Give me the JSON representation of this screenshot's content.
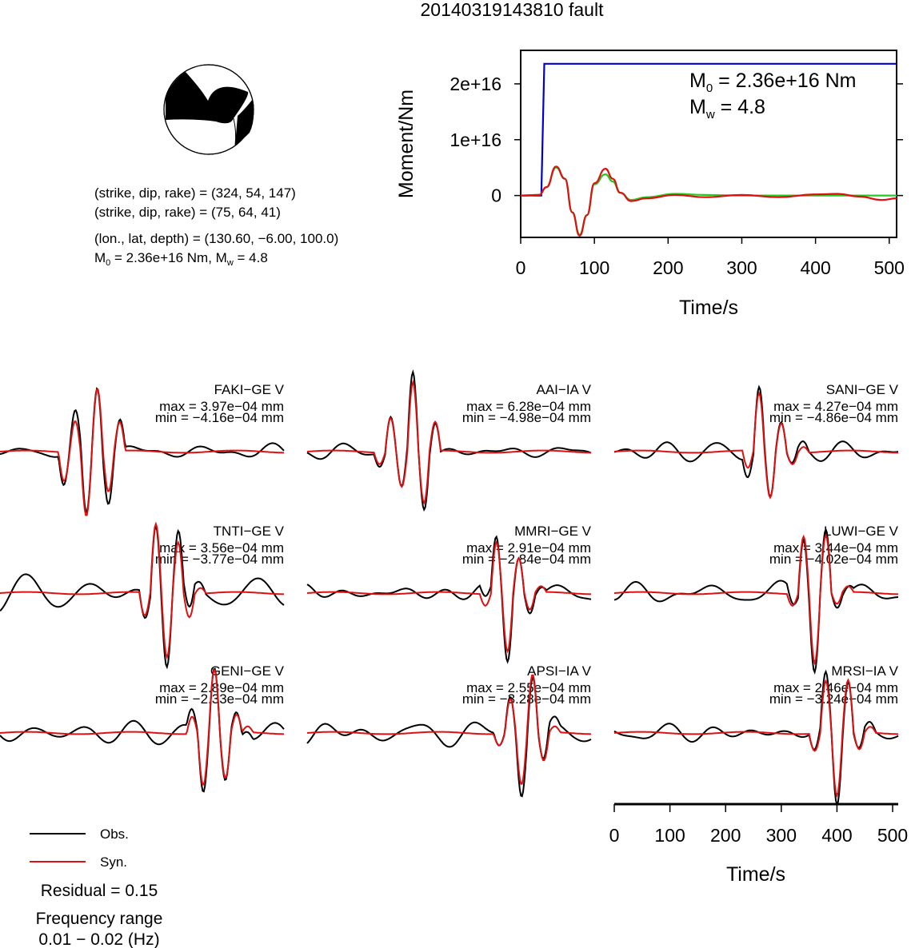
{
  "title": "20140319143810 fault",
  "mechanism": {
    "line1": "(strike, dip, rake) = (324, 54, 147)",
    "line2": "(strike, dip, rake) = (75, 64, 41)",
    "location": "(lon., lat, depth) = (130.60, −6.00, 100.0)",
    "moment_prefix": "M",
    "moment_sub": "0",
    "moment_text": " = 2.36e+16 Nm, M",
    "mw_sub": "w",
    "mw_text": " = 4.8"
  },
  "stf": {
    "ylabel": "Moment/Nm",
    "xlabel": "Time/s",
    "xticks": [
      0,
      100,
      200,
      300,
      400,
      500
    ],
    "yticks": [
      {
        "v": 0,
        "label": "0"
      },
      {
        "v": 1e+16,
        "label": "1e+16"
      },
      {
        "v": 2e+16,
        "label": "2e+16"
      }
    ],
    "xlim": [
      0,
      510
    ],
    "ylim": [
      -7500000000000000.0,
      2.6e+16
    ],
    "m0_prefix": "M",
    "m0_sub": "0",
    "m0_text": " = 2.36e+16 Nm",
    "mw_prefix": "M",
    "mw_sub": "w",
    "mw_text": " = 4.8",
    "colors": {
      "cumulative": "#0000cc",
      "green": "#22cc22",
      "red": "#dd1111"
    }
  },
  "stations": [
    {
      "name": "FAKI−GE V",
      "max": "max = 3.97e−04 mm",
      "min": "min = −4.16e−04 mm"
    },
    {
      "name": "AAI−IA V",
      "max": "max = 6.28e−04 mm",
      "min": "min = −4.98e−04 mm"
    },
    {
      "name": "SANI−GE V",
      "max": "max = 4.27e−04 mm",
      "min": "min = −4.86e−04 mm"
    },
    {
      "name": "TNTI−GE V",
      "max": "max = 3.56e−04 mm",
      "min": "min = −3.77e−04 mm"
    },
    {
      "name": "MMRI−GE V",
      "max": "max = 2.91e−04 mm",
      "min": "min = −2.84e−04 mm"
    },
    {
      "name": "LUWI−GE V",
      "max": "max = 3.44e−04 mm",
      "min": "min = −4.02e−04 mm"
    },
    {
      "name": "GENI−GE V",
      "max": "max = 2.89e−04 mm",
      "min": "min = −2.33e−04 mm"
    },
    {
      "name": "APSI−IA V",
      "max": "max = 2.55e−04 mm",
      "min": "min = −3.28e−04 mm"
    },
    {
      "name": "MRSI−IA V",
      "max": "max = 2.46e−04 mm",
      "min": "min = −3.24e−04 mm"
    }
  ],
  "time_axis": {
    "xlabel": "Time/s",
    "ticks": [
      0,
      100,
      200,
      300,
      400,
      500
    ],
    "xlim": [
      0,
      510
    ]
  },
  "legend": {
    "obs": "Obs.",
    "syn": "Syn.",
    "obs_color": "#000000",
    "syn_color": "#dd1111"
  },
  "residual": "Residual = 0.15",
  "freq_title": "Frequency range",
  "freq_range": "0.01 − 0.02 (Hz)",
  "chart_data": [
    {
      "type": "line",
      "title": "20140319143810 fault",
      "xlabel": "Time/s",
      "ylabel": "Moment/Nm",
      "xlim": [
        0,
        510
      ],
      "ylim": [
        -7500000000000000.0,
        2.6e+16
      ],
      "series": [
        {
          "x": [
            0,
            28,
            32,
            40,
            510
          ],
          "values": [
            0,
            0,
            2.36e+16,
            2.36e+16,
            2.36e+16
          ]
        },
        {
          "x": [
            0,
            25,
            35,
            48,
            60,
            70,
            80,
            90,
            100,
            115,
            125,
            135,
            150,
            170,
            210,
            250,
            300,
            350,
            400,
            430,
            460,
            490,
            510
          ],
          "values": [
            0,
            100000000000000.0,
            1500000000000000.0,
            5000000000000000.0,
            3000000000000000.0,
            -3000000000000000.0,
            -7000000000000000.0,
            -3500000000000000.0,
            2000000000000000.0,
            3800000000000000.0,
            2500000000000000.0,
            500000000000000.0,
            -800000000000000.0,
            -300000000000000.0,
            300000000000000.0,
            100000000000000.0,
            0,
            0,
            0,
            0,
            0,
            0,
            0
          ]
        },
        {
          "x": [
            0,
            25,
            35,
            48,
            60,
            70,
            80,
            90,
            100,
            115,
            125,
            135,
            150,
            170,
            210,
            250,
            300,
            350,
            400,
            430,
            460,
            490,
            510
          ],
          "values": [
            0,
            100000000000000.0,
            1500000000000000.0,
            5200000000000000.0,
            3000000000000000.0,
            -3000000000000000.0,
            -7200000000000000.0,
            -3500000000000000.0,
            2200000000000000.0,
            4800000000000000.0,
            3000000000000000.0,
            500000000000000.0,
            -1000000000000000.0,
            -500000000000000.0,
            100000000000000.0,
            -300000000000000.0,
            100000000000000.0,
            -300000000000000.0,
            200000000000000.0,
            300000000000000.0,
            -200000000000000.0,
            -800000000000000.0,
            -500000000000000.0
          ]
        }
      ]
    },
    {
      "type": "line",
      "xlabel": "Time/s",
      "xlim": [
        0,
        510
      ],
      "series": [
        {
          "name": "Obs."
        },
        {
          "name": "Syn."
        }
      ],
      "panels": [
        "FAKI−GE V",
        "AAI−IA V",
        "SANI−GE V",
        "TNTI−GE V",
        "MMRI−GE V",
        "LUWI−GE V",
        "GENI−GE V",
        "APSI−IA V",
        "MRSI−IA V"
      ],
      "max_mm": [
        0.000397,
        0.000628,
        0.000427,
        0.000356,
        0.000291,
        0.000344,
        0.000289,
        0.000255,
        0.000246
      ],
      "min_mm": [
        -0.000416,
        -0.000498,
        -0.000486,
        -0.000377,
        -0.000284,
        -0.000402,
        -0.000233,
        -0.000328,
        -0.000324
      ]
    }
  ]
}
